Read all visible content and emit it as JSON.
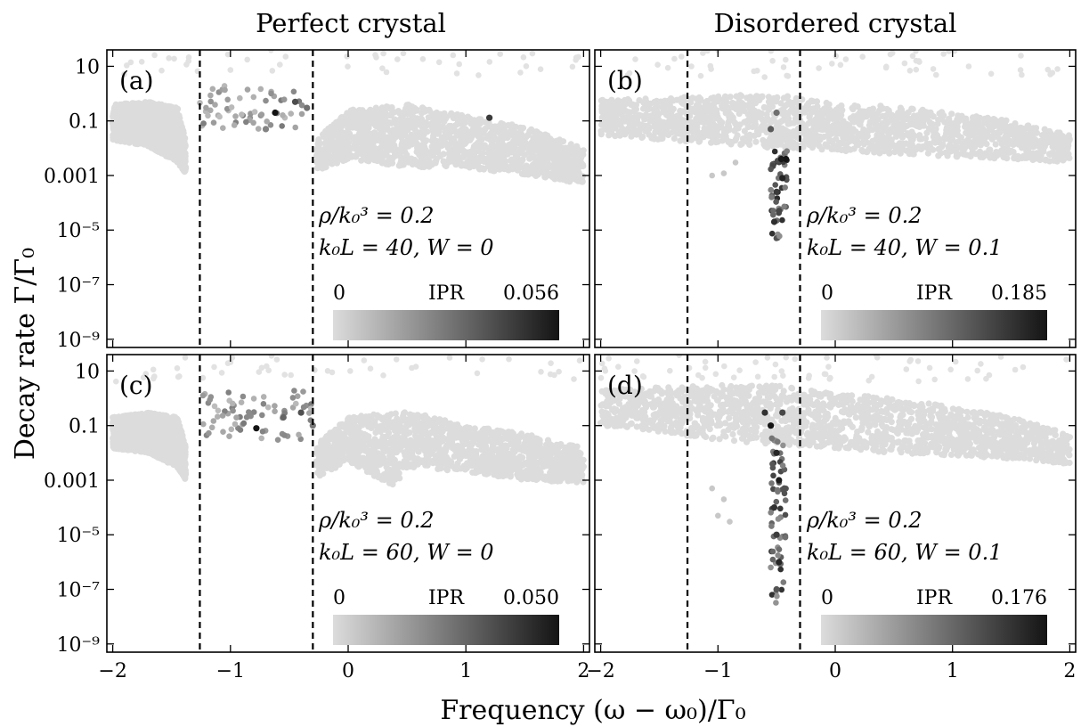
{
  "figure": {
    "col_titles": [
      "Perfect crystal",
      "Disordered crystal"
    ],
    "xlabel": "Frequency (ω − ω₀)/Γ₀",
    "ylabel": "Decay rate Γ/Γ₀"
  },
  "chart_data": [
    {
      "type": "scatter",
      "panel_label": "(a)",
      "annotation_line1": "ρ/k₀³ = 0.2",
      "annotation_line2": "k₀L = 40, W = 0",
      "colorbar": {
        "label": "IPR",
        "min_label": "0",
        "max_label": "0.056",
        "min": 0,
        "max": 0.056,
        "colors": [
          "#dcdcdc",
          "#141414"
        ]
      },
      "x_ticks": [
        "−2",
        "−1",
        "0",
        "1",
        "2"
      ],
      "y_ticks": [
        "10",
        "0.1",
        "0.001",
        "10⁻⁵",
        "10⁻⁷",
        "10⁻⁹"
      ],
      "x_tick_values": [
        -2,
        -1,
        0,
        1,
        2
      ],
      "y_tick_values": [
        10,
        0.1,
        0.001,
        1e-05,
        1e-07,
        1e-09
      ],
      "xlim": [
        -2.05,
        2.05
      ],
      "ylim": [
        5e-10,
        40
      ],
      "y_scale": "log",
      "vlines": [
        -1.26,
        -0.3
      ],
      "band_low": [
        [
          -2,
          0.02
        ],
        [
          -1.7,
          0.012
        ],
        [
          -1.45,
          0.003
        ],
        [
          -1.38,
          0.0012
        ]
      ],
      "band_high": [
        [
          -2,
          0.4
        ],
        [
          -1.7,
          0.5
        ],
        [
          -1.45,
          0.3
        ],
        [
          -1.38,
          0.02
        ]
      ],
      "band2_low": [
        [
          -0.27,
          0.0015
        ],
        [
          0,
          0.004
        ],
        [
          0.5,
          0.002
        ],
        [
          1,
          0.002
        ],
        [
          1.5,
          0.001
        ],
        [
          2,
          0.0005
        ]
      ],
      "band2_high": [
        [
          -0.27,
          0.02
        ],
        [
          0,
          0.25
        ],
        [
          0.5,
          0.4
        ],
        [
          1,
          0.15
        ],
        [
          1.5,
          0.06
        ],
        [
          2,
          0.01
        ]
      ],
      "spread": {
        "x": [
          -1.26,
          -0.3
        ],
        "y": [
          0.05,
          2
        ],
        "count": 60
      },
      "top_row": {
        "x": [
          -2,
          2
        ],
        "y": [
          4,
          40
        ],
        "count": 45
      },
      "dark_points": [
        [
          -0.62,
          0.2,
          0.056
        ],
        [
          -0.45,
          0.5,
          0.04
        ],
        [
          -0.35,
          0.3,
          0.03
        ],
        [
          1.2,
          0.13,
          0.045
        ],
        [
          -0.7,
          0.05,
          0.025
        ]
      ]
    },
    {
      "type": "scatter",
      "panel_label": "(b)",
      "annotation_line1": "ρ/k₀³ = 0.2",
      "annotation_line2": "k₀L = 40, W = 0.1",
      "colorbar": {
        "label": "IPR",
        "min_label": "0",
        "max_label": "0.185",
        "min": 0,
        "max": 0.185,
        "colors": [
          "#dcdcdc",
          "#141414"
        ]
      },
      "x_ticks": [
        "−2",
        "−1",
        "0",
        "1",
        "2"
      ],
      "y_ticks": [
        "10",
        "0.1",
        "0.001",
        "10⁻⁵",
        "10⁻⁷",
        "10⁻⁹"
      ],
      "x_tick_values": [
        -2,
        -1,
        0,
        1,
        2
      ],
      "y_tick_values": [
        10,
        0.1,
        0.001,
        1e-05,
        1e-07,
        1e-09
      ],
      "xlim": [
        -2.05,
        2.05
      ],
      "ylim": [
        5e-10,
        40
      ],
      "y_scale": "log",
      "vlines": [
        -1.26,
        -0.3
      ],
      "band_low": [
        [
          -2,
          0.03
        ],
        [
          -1.5,
          0.02
        ],
        [
          -1,
          0.015
        ],
        [
          -0.5,
          0.01
        ],
        [
          0,
          0.008
        ],
        [
          0.5,
          0.006
        ],
        [
          1,
          0.005
        ],
        [
          1.5,
          0.004
        ],
        [
          2,
          0.003
        ]
      ],
      "band_high": [
        [
          -2,
          0.6
        ],
        [
          -1.5,
          0.7
        ],
        [
          -1,
          0.8
        ],
        [
          -0.5,
          1
        ],
        [
          0,
          0.4
        ],
        [
          0.5,
          0.35
        ],
        [
          1,
          0.2
        ],
        [
          1.5,
          0.1
        ],
        [
          2,
          0.03
        ]
      ],
      "column": {
        "x": [
          -0.55,
          -0.4
        ],
        "y": [
          5e-06,
          0.01
        ],
        "count": 45
      },
      "dip": [
        [
          -1.05,
          0.001
        ],
        [
          -0.95,
          0.0012
        ],
        [
          -0.85,
          0.003
        ]
      ],
      "top_row": {
        "x": [
          -2,
          2
        ],
        "y": [
          4,
          40
        ],
        "count": 55
      },
      "dark_points": [
        [
          -0.42,
          0.004,
          0.185
        ],
        [
          -0.45,
          0.0008,
          0.17
        ],
        [
          -0.5,
          0.00025,
          0.15
        ],
        [
          -0.48,
          5e-05,
          0.14
        ],
        [
          -0.52,
          2e-05,
          0.16
        ],
        [
          -0.55,
          0.05,
          0.12
        ],
        [
          -0.5,
          0.2,
          0.1
        ],
        [
          -0.46,
          0.004,
          0.18
        ]
      ]
    },
    {
      "type": "scatter",
      "panel_label": "(c)",
      "annotation_line1": "ρ/k₀³ = 0.2",
      "annotation_line2": "k₀L = 60, W = 0",
      "colorbar": {
        "label": "IPR",
        "min_label": "0",
        "max_label": "0.050",
        "min": 0,
        "max": 0.05,
        "colors": [
          "#dcdcdc",
          "#141414"
        ]
      },
      "x_ticks": [
        "−2",
        "−1",
        "0",
        "1",
        "2"
      ],
      "y_ticks": [
        "10",
        "0.1",
        "0.001",
        "10⁻⁵",
        "10⁻⁷",
        "10⁻⁹"
      ],
      "x_tick_values": [
        -2,
        -1,
        0,
        1,
        2
      ],
      "y_tick_values": [
        10,
        0.1,
        0.001,
        1e-05,
        1e-07,
        1e-09
      ],
      "xlim": [
        -2.05,
        2.05
      ],
      "ylim": [
        5e-10,
        40
      ],
      "y_scale": "log",
      "vlines": [
        -1.26,
        -0.3
      ],
      "band_low": [
        [
          -2,
          0.015
        ],
        [
          -1.7,
          0.01
        ],
        [
          -1.45,
          0.003
        ],
        [
          -1.38,
          0.001
        ]
      ],
      "band_high": [
        [
          -2,
          0.2
        ],
        [
          -1.7,
          0.3
        ],
        [
          -1.45,
          0.2
        ],
        [
          -1.38,
          0.02
        ]
      ],
      "band2_low": [
        [
          -0.27,
          0.0012
        ],
        [
          0,
          0.005
        ],
        [
          0.4,
          0.0005
        ],
        [
          0.5,
          0.003
        ],
        [
          1,
          0.002
        ],
        [
          1.5,
          0.001
        ],
        [
          2,
          0.0008
        ]
      ],
      "band2_high": [
        [
          -0.27,
          0.02
        ],
        [
          0,
          0.2
        ],
        [
          0.5,
          0.35
        ],
        [
          1,
          0.1
        ],
        [
          1.5,
          0.05
        ],
        [
          2,
          0.015
        ]
      ],
      "spread": {
        "x": [
          -1.26,
          -0.3
        ],
        "y": [
          0.03,
          2
        ],
        "count": 70
      },
      "top_row": {
        "x": [
          -2,
          2
        ],
        "y": [
          4,
          40
        ],
        "count": 45
      },
      "dark_points": [
        [
          -0.78,
          0.08,
          0.05
        ],
        [
          -0.4,
          0.3,
          0.035
        ],
        [
          -0.55,
          0.2,
          0.03
        ],
        [
          -0.3,
          0.1,
          0.025
        ]
      ]
    },
    {
      "type": "scatter",
      "panel_label": "(d)",
      "annotation_line1": "ρ/k₀³ = 0.2",
      "annotation_line2": "k₀L = 60, W = 0.1",
      "colorbar": {
        "label": "IPR",
        "min_label": "0",
        "max_label": "0.176",
        "min": 0,
        "max": 0.176,
        "colors": [
          "#dcdcdc",
          "#141414"
        ]
      },
      "x_ticks": [
        "−2",
        "−1",
        "0",
        "1",
        "2"
      ],
      "y_ticks": [
        "10",
        "0.1",
        "0.001",
        "10⁻⁵",
        "10⁻⁷",
        "10⁻⁹"
      ],
      "x_tick_values": [
        -2,
        -1,
        0,
        1,
        2
      ],
      "y_tick_values": [
        10,
        0.1,
        0.001,
        1e-05,
        1e-07,
        1e-09
      ],
      "xlim": [
        -2.05,
        2.05
      ],
      "ylim": [
        5e-10,
        40
      ],
      "y_scale": "log",
      "vlines": [
        -1.26,
        -0.3
      ],
      "band_low": [
        [
          -2,
          0.1
        ],
        [
          -1.5,
          0.06
        ],
        [
          -1,
          0.03
        ],
        [
          -0.5,
          0.02
        ],
        [
          0,
          0.015
        ],
        [
          0.5,
          0.01
        ],
        [
          1,
          0.008
        ],
        [
          1.5,
          0.006
        ],
        [
          2,
          0.004
        ]
      ],
      "band_high": [
        [
          -2,
          2
        ],
        [
          -1.5,
          2.5
        ],
        [
          -1,
          3
        ],
        [
          -0.5,
          3
        ],
        [
          0,
          1.5
        ],
        [
          0.5,
          1
        ],
        [
          1,
          0.5
        ],
        [
          1.5,
          0.2
        ],
        [
          2,
          0.05
        ]
      ],
      "column": {
        "x": [
          -0.55,
          -0.42
        ],
        "y": [
          3e-08,
          0.05
        ],
        "count": 60
      },
      "dip": [
        [
          -1.05,
          0.0005
        ],
        [
          -0.95,
          0.0002
        ],
        [
          -0.9,
          3e-05
        ],
        [
          -1.0,
          5e-05
        ]
      ],
      "top_row": {
        "x": [
          -2,
          2
        ],
        "y": [
          4,
          40
        ],
        "count": 60
      },
      "dark_points": [
        [
          -0.55,
          0.1,
          0.176
        ],
        [
          -0.5,
          0.01,
          0.16
        ],
        [
          -0.48,
          0.001,
          0.17
        ],
        [
          -0.52,
          0.0001,
          0.15
        ],
        [
          -0.5,
          1e-05,
          0.14
        ],
        [
          -0.48,
          1e-06,
          0.16
        ],
        [
          -0.5,
          1e-07,
          0.12
        ],
        [
          -0.45,
          0.3,
          0.13
        ],
        [
          -0.6,
          0.3,
          0.15
        ]
      ]
    }
  ]
}
